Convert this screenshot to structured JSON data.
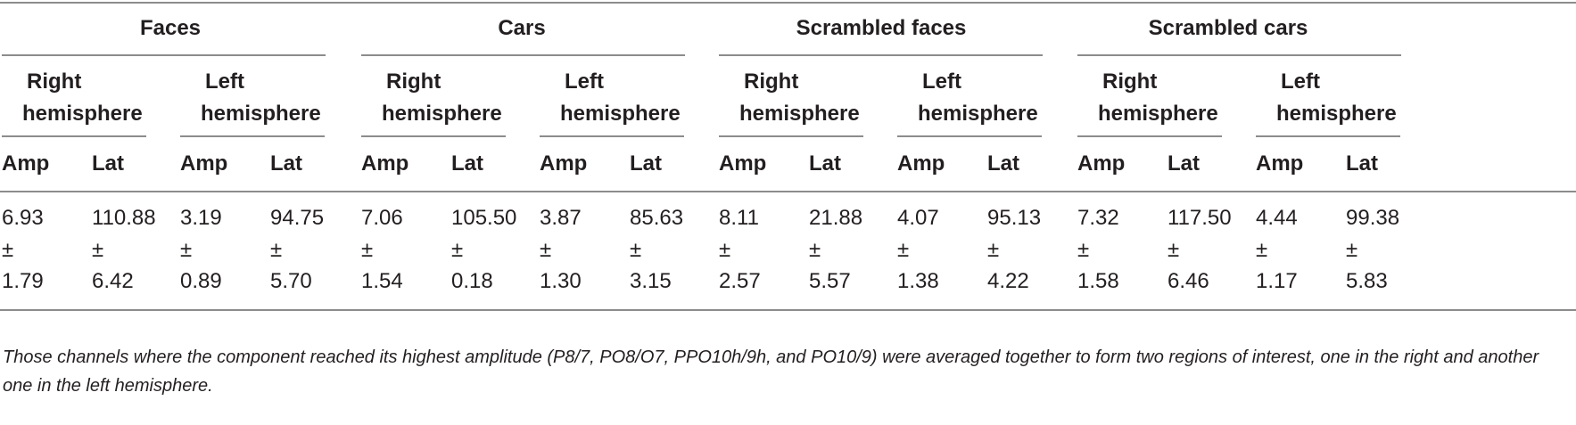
{
  "table": {
    "conditions": [
      {
        "label": "Faces"
      },
      {
        "label": "Cars"
      },
      {
        "label": "Scrambled faces"
      },
      {
        "label": "Scrambled cars"
      }
    ],
    "hemispheres": [
      "Right\nhemisphere",
      "Left\nhemisphere"
    ],
    "columns": [
      "Amp",
      "Lat"
    ],
    "pm": "±",
    "values": [
      {
        "mean": "6.93",
        "sd": "1.79"
      },
      {
        "mean": "110.88",
        "sd": "6.42"
      },
      {
        "mean": "3.19",
        "sd": "0.89"
      },
      {
        "mean": "94.75",
        "sd": "5.70"
      },
      {
        "mean": "7.06",
        "sd": "1.54"
      },
      {
        "mean": "105.50",
        "sd": "0.18"
      },
      {
        "mean": "3.87",
        "sd": "1.30"
      },
      {
        "mean": "85.63",
        "sd": "3.15"
      },
      {
        "mean": "8.11",
        "sd": "2.57"
      },
      {
        "mean": "21.88",
        "sd": "5.57"
      },
      {
        "mean": "4.07",
        "sd": "1.38"
      },
      {
        "mean": "95.13",
        "sd": "4.22"
      },
      {
        "mean": "7.32",
        "sd": "1.58"
      },
      {
        "mean": "117.50",
        "sd": "6.46"
      },
      {
        "mean": "4.44",
        "sd": "1.17"
      },
      {
        "mean": "99.38",
        "sd": "5.83"
      }
    ],
    "footnote": "Those channels where the component reached its highest amplitude (P8/7, PO8/O7, PPO10h/9h, and PO10/9) were averaged together to form two regions of interest, one in the right and another one in the left hemisphere."
  }
}
